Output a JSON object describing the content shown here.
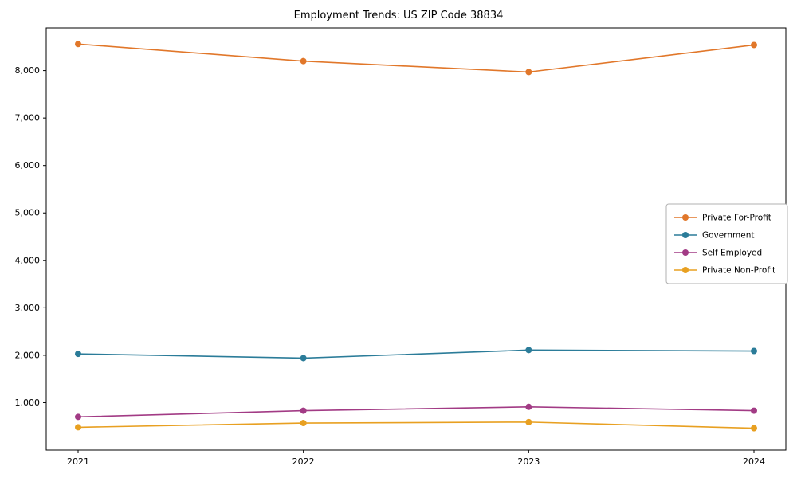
{
  "title": "Employment Trends: US ZIP Code 38834",
  "chart_data": {
    "type": "line",
    "title": "Employment Trends: US ZIP Code 38834",
    "categories": [
      "2021",
      "2022",
      "2023",
      "2024"
    ],
    "series": [
      {
        "name": "Private For-Profit",
        "color": "#e1772a",
        "values": [
          8560,
          8200,
          7970,
          8540
        ]
      },
      {
        "name": "Government",
        "color": "#2b7c99",
        "values": [
          2030,
          1940,
          2110,
          2090
        ]
      },
      {
        "name": "Self-Employed",
        "color": "#a23b85",
        "values": [
          700,
          830,
          910,
          830
        ]
      },
      {
        "name": "Private Non-Profit",
        "color": "#e8a021",
        "values": [
          480,
          570,
          590,
          460
        ]
      }
    ],
    "xlabel": "",
    "ylabel": "",
    "ylim": [
      0,
      8900
    ],
    "yticks": [
      1000,
      2000,
      3000,
      4000,
      5000,
      6000,
      7000,
      8000
    ],
    "grid": false,
    "legend_position": "center-right",
    "axis_color": "#000000",
    "legend_border_color": "#b0b0b0"
  }
}
